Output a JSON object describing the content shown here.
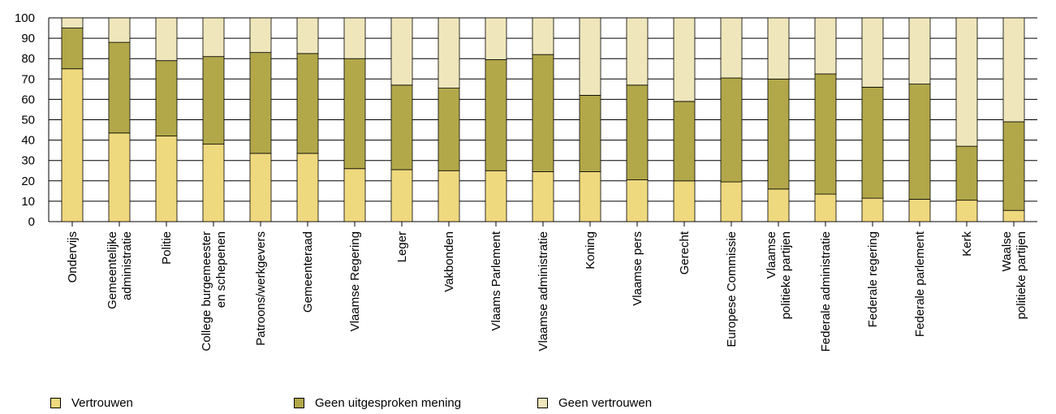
{
  "chart_data": {
    "type": "bar",
    "stacked": true,
    "categories": [
      "Ondervijs",
      "Gemeentelijke administratie",
      "Politie",
      "College burgemeester en schepenen",
      "Patroons/werkgevers",
      "Gemeenteraad",
      "Vlaamse Regering",
      "Leger",
      "Vakbonden",
      "Vlaams Parlement",
      "Vlaamse administratie",
      "Koning",
      "Vlaamse pers",
      "Gerecht",
      "Europese Commissie",
      "Vlaamse politieke partijen",
      "Federale administratie",
      "Federale regering",
      "Federale parlement",
      "Kerk",
      "Waalse politieke partijen"
    ],
    "category_lines": [
      [
        "Ondervijs"
      ],
      [
        "Gemeentelijke",
        "administratie"
      ],
      [
        "Politie"
      ],
      [
        "College burgemeester",
        "en schepenen"
      ],
      [
        "Patroons/werkgevers"
      ],
      [
        "Gemeenteraad"
      ],
      [
        "Vlaamse Regering"
      ],
      [
        "Leger"
      ],
      [
        "Vakbonden"
      ],
      [
        "Vlaams Parlement"
      ],
      [
        "Vlaamse administratie"
      ],
      [
        "Koning"
      ],
      [
        "Vlaamse pers"
      ],
      [
        "Gerecht"
      ],
      [
        "Europese Commissie"
      ],
      [
        "Vlaamse",
        "politieke partijen"
      ],
      [
        "Federale administratie"
      ],
      [
        "Federale regering"
      ],
      [
        "Federale parlement"
      ],
      [
        "Kerk"
      ],
      [
        "Waalse",
        "politieke partijen"
      ]
    ],
    "series": [
      {
        "name": "Vertrouwen",
        "color": "#efd97f",
        "values": [
          75,
          43.5,
          42,
          38,
          33.5,
          33.5,
          26,
          25.5,
          25,
          25,
          24.5,
          24.5,
          20.5,
          20,
          19.5,
          16,
          13.5,
          11.5,
          11,
          10.5,
          5.5
        ]
      },
      {
        "name": "Geen uitgesproken mening",
        "color": "#b2a84a",
        "values": [
          20,
          44.5,
          37,
          43,
          49.5,
          49,
          54,
          41.5,
          40.5,
          54.5,
          57.5,
          37.5,
          46.5,
          39,
          51,
          54,
          59,
          54.5,
          56.5,
          26.5,
          43.5
        ]
      },
      {
        "name": "Geen vertrouwen",
        "color": "#efe7bb",
        "values": [
          5,
          12,
          21,
          19,
          17,
          17.5,
          20,
          33,
          34.5,
          20.5,
          18,
          38,
          33,
          41,
          29.5,
          30,
          27.5,
          34,
          32.5,
          63,
          51
        ]
      }
    ],
    "yticks": [
      "0",
      "10",
      "20",
      "30",
      "40",
      "50",
      "60",
      "70",
      "80",
      "90",
      "100"
    ],
    "ylim": [
      0,
      100
    ],
    "grid": true,
    "legend_position": "bottom-left",
    "title": "",
    "xlabel": "",
    "ylabel": ""
  }
}
